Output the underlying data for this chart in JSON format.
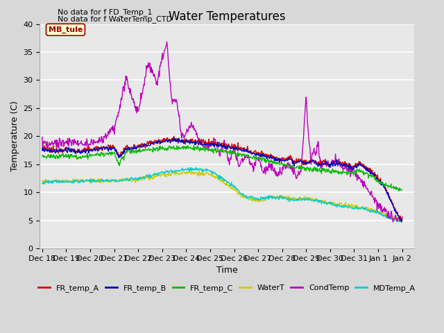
{
  "title": "Water Temperatures",
  "ylabel": "Temperature (C)",
  "xlabel": "Time",
  "annotations": [
    "No data for f FD_Temp_1",
    "No data for f WaterTemp_CTD"
  ],
  "mb_tule_label": "MB_tule",
  "legend_entries": [
    "FR_temp_A",
    "FR_temp_B",
    "FR_temp_C",
    "WaterT",
    "CondTemp",
    "MDTemp_A"
  ],
  "legend_colors": [
    "#dd0000",
    "#0000bb",
    "#00bb00",
    "#cccc00",
    "#bb00bb",
    "#00cccc"
  ],
  "ylim": [
    0,
    40
  ],
  "yticks": [
    0,
    5,
    10,
    15,
    20,
    25,
    30,
    35,
    40
  ],
  "xtick_labels": [
    "Dec 18",
    "Dec 19",
    "Dec 20",
    "Dec 21",
    "Dec 22",
    "Dec 23",
    "Dec 24",
    "Dec 25",
    "Dec 26",
    "Dec 27",
    "Dec 28",
    "Dec 29",
    "Dec 30",
    "Dec 31",
    "Jan 1",
    "Jan 2"
  ],
  "n_days": 15,
  "background_color": "#e8e8e8",
  "grid_color": "#ffffff",
  "title_fontsize": 12,
  "axis_fontsize": 9,
  "tick_fontsize": 8,
  "lw": 1.0
}
